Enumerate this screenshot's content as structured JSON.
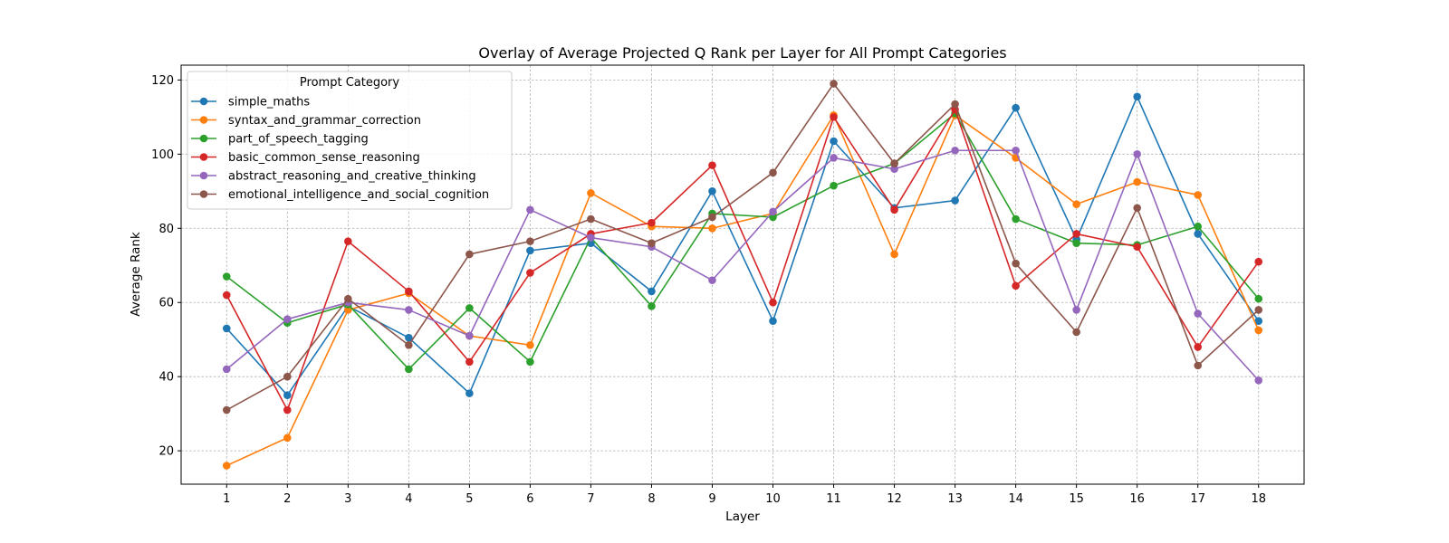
{
  "chart_data": {
    "type": "line",
    "title": "Overlay of Average Projected Q Rank per Layer for All Prompt Categories",
    "xlabel": "Layer",
    "ylabel": "Average Rank",
    "xlim": [
      0.25,
      18.75
    ],
    "ylim": [
      11,
      124
    ],
    "xticks": [
      1,
      2,
      3,
      4,
      5,
      6,
      7,
      8,
      9,
      10,
      11,
      12,
      13,
      14,
      15,
      16,
      17,
      18
    ],
    "yticks": [
      20,
      40,
      60,
      80,
      100,
      120
    ],
    "grid": true,
    "legend": {
      "title": "Prompt Category",
      "placement": "top-left"
    },
    "x": [
      1,
      2,
      3,
      4,
      5,
      6,
      7,
      8,
      9,
      10,
      11,
      12,
      13,
      14,
      15,
      16,
      17,
      18
    ],
    "series": [
      {
        "name": "simple_maths",
        "color": "#1f77b4",
        "values": [
          53,
          35,
          59,
          50.5,
          35.5,
          74,
          76,
          63,
          90,
          55,
          103.5,
          85.5,
          87.5,
          112.5,
          77,
          115.5,
          78.5,
          55
        ]
      },
      {
        "name": "syntax_and_grammar_correction",
        "color": "#ff7f0e",
        "values": [
          16,
          23.5,
          58,
          62.5,
          51,
          48.5,
          89.5,
          80.5,
          80,
          84,
          110.5,
          73,
          110.5,
          99,
          86.5,
          92.5,
          89,
          52.5
        ]
      },
      {
        "name": "part_of_speech_tagging",
        "color": "#2ca02c",
        "values": [
          67,
          54.5,
          59.5,
          42,
          58.5,
          44,
          77.5,
          59,
          84,
          83,
          91.5,
          97.5,
          111,
          82.5,
          76,
          75.5,
          80.5,
          61
        ]
      },
      {
        "name": "basic_common_sense_reasoning",
        "color": "#d62728",
        "values": [
          62,
          31,
          76.5,
          63,
          44,
          68,
          78.5,
          81.5,
          97,
          60,
          110,
          85,
          112,
          64.5,
          78.5,
          75,
          48,
          71
        ]
      },
      {
        "name": "abstract_reasoning_and_creative_thinking",
        "color": "#9467bd",
        "values": [
          42,
          55.5,
          60,
          58,
          51,
          85,
          77.5,
          75,
          66,
          84.5,
          99,
          96,
          101,
          101,
          58,
          100,
          57,
          39
        ]
      },
      {
        "name": "emotional_intelligence_and_social_cognition",
        "color": "#8c564b",
        "values": [
          31,
          40,
          61,
          48.5,
          73,
          76.5,
          82.5,
          76,
          83,
          95,
          119,
          97.5,
          113.5,
          70.5,
          52,
          85.5,
          43,
          58
        ]
      }
    ]
  }
}
